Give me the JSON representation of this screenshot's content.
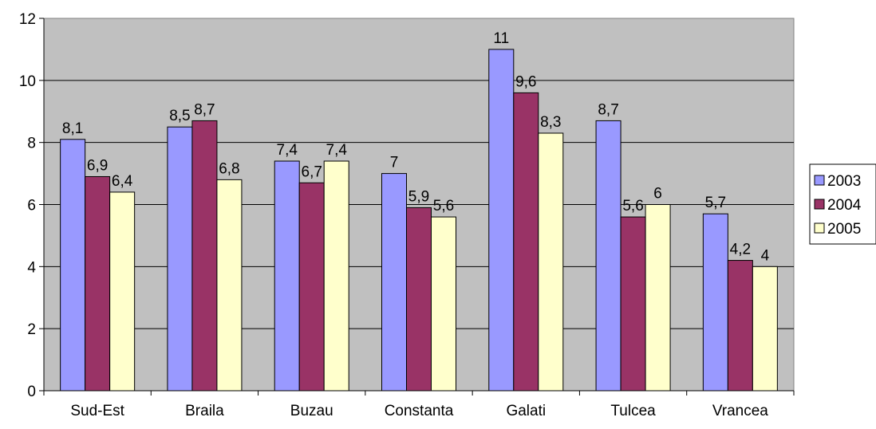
{
  "chart_data": {
    "type": "bar",
    "categories": [
      "Sud-Est",
      "Braila",
      "Buzau",
      "Constanta",
      "Galati",
      "Tulcea",
      "Vrancea"
    ],
    "series": [
      {
        "name": "2003",
        "color": "#9999FF",
        "values": [
          8.1,
          8.5,
          7.4,
          7,
          11,
          8.7,
          5.7
        ],
        "labels": [
          "8,1",
          "8,5",
          "7,4",
          "7",
          "11",
          "8,7",
          "5,7"
        ]
      },
      {
        "name": "2004",
        "color": "#993366",
        "values": [
          6.9,
          8.7,
          6.7,
          5.9,
          9.6,
          5.6,
          4.2
        ],
        "labels": [
          "6,9",
          "8,7",
          "6,7",
          "5,9",
          "9,6",
          "5,6",
          "4,2"
        ]
      },
      {
        "name": "2005",
        "color": "#FFFFCC",
        "values": [
          6.4,
          6.8,
          7.4,
          5.6,
          8.3,
          6,
          4
        ],
        "labels": [
          "6,4",
          "6,8",
          "7,4",
          "5,6",
          "8,3",
          "6",
          "4"
        ]
      }
    ],
    "title": "",
    "xlabel": "",
    "ylabel": "",
    "ylim": [
      0,
      12
    ],
    "yticks": [
      "0",
      "2",
      "4",
      "6",
      "8",
      "10",
      "12"
    ],
    "grid": true,
    "plot_background": "#C0C0C0",
    "legend_placement": "right"
  }
}
